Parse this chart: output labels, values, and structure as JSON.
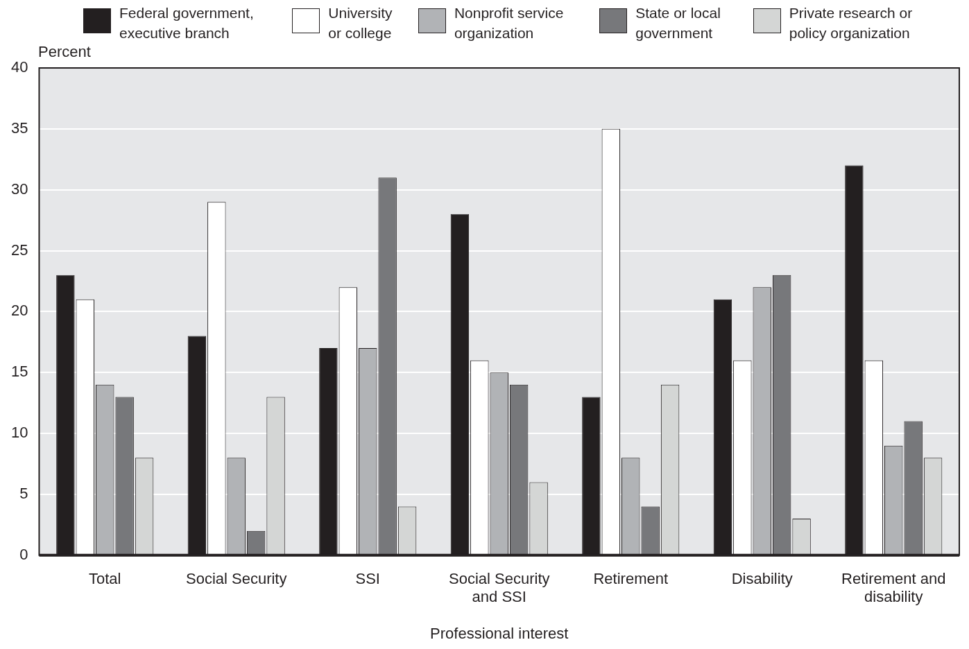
{
  "chart_data": {
    "type": "bar",
    "xlabel": "Professional interest",
    "ylabel": "Percent",
    "categories": [
      "Total",
      "Social Security",
      "SSI",
      "Social Security and SSI",
      "Retirement",
      "Disability",
      "Retirement and disability"
    ],
    "series": [
      {
        "name": "Federal government, executive branch",
        "color": "#231f20",
        "values": [
          23,
          18,
          17,
          28,
          13,
          21,
          32
        ]
      },
      {
        "name": "University or college",
        "color": "#ffffff",
        "values": [
          21,
          29,
          22,
          16,
          35,
          16,
          16
        ]
      },
      {
        "name": "Nonprofit service organization",
        "color": "#b1b3b6",
        "values": [
          14,
          8,
          17,
          15,
          8,
          22,
          9
        ]
      },
      {
        "name": "State or local government",
        "color": "#77787b",
        "values": [
          13,
          2,
          31,
          14,
          4,
          23,
          11
        ]
      },
      {
        "name": "Private research or policy organization",
        "color": "#d4d6d5",
        "values": [
          8,
          13,
          4,
          6,
          14,
          3,
          8
        ]
      }
    ],
    "ylim": [
      0,
      40
    ],
    "yticks": [
      0,
      5,
      10,
      15,
      20,
      25,
      30,
      35,
      40
    ],
    "grid": "y",
    "legend": "top"
  }
}
